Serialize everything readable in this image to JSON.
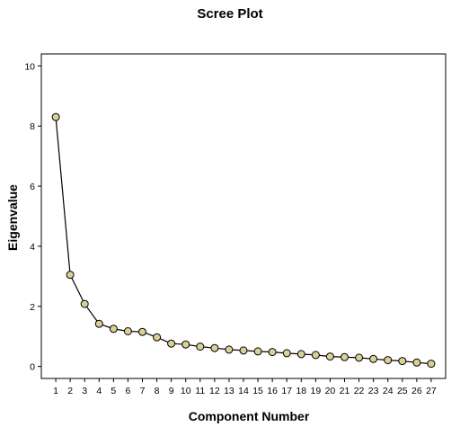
{
  "chart_data": {
    "type": "line",
    "title": "Scree Plot",
    "xlabel": "Component Number",
    "ylabel": "Eigenvalue",
    "x": [
      1,
      2,
      3,
      4,
      5,
      6,
      7,
      8,
      9,
      10,
      11,
      12,
      13,
      14,
      15,
      16,
      17,
      18,
      19,
      20,
      21,
      22,
      23,
      24,
      25,
      26,
      27
    ],
    "y_ticks": [
      0,
      2,
      4,
      6,
      8,
      10
    ],
    "ylim": [
      -0.4,
      10.4
    ],
    "xlim": [
      0,
      28
    ],
    "grid": false,
    "legend": "none",
    "series": [
      {
        "values": [
          8.3,
          3.05,
          2.08,
          1.42,
          1.25,
          1.17,
          1.15,
          0.97,
          0.76,
          0.73,
          0.66,
          0.61,
          0.56,
          0.53,
          0.5,
          0.48,
          0.44,
          0.41,
          0.38,
          0.33,
          0.31,
          0.29,
          0.25,
          0.21,
          0.18,
          0.13,
          0.09
        ]
      }
    ],
    "colors": {
      "marker_fill": "#d8d097",
      "marker_stroke": "#000000",
      "line": "#000000",
      "frame": "#000000"
    }
  }
}
